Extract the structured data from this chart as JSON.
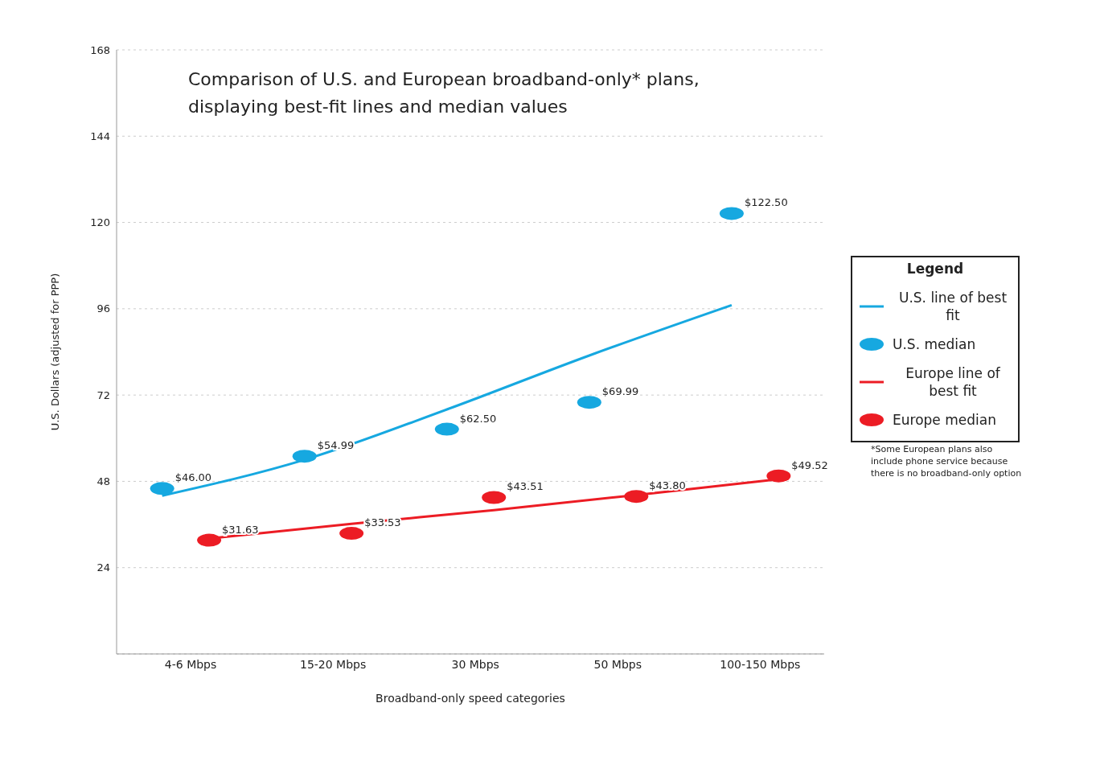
{
  "chart_data": {
    "type": "scatter",
    "title": "Comparison of U.S. and European broadband-only* plans, displaying best-fit lines and median values",
    "xlabel": "Broadband-only speed categories",
    "ylabel": "U.S. Dollars (adjusted for PPP)",
    "legend_title": "Legend",
    "categories": [
      "4-6 Mbps",
      "15-20 Mbps",
      "30 Mbps",
      "50 Mbps",
      "100-150 Mbps"
    ],
    "series": [
      {
        "name": "U.S. line of best fit",
        "type": "line",
        "color": "#16a8e0",
        "x": [
          "4-6 Mbps",
          "15-20 Mbps",
          "30 Mbps",
          "50 Mbps",
          "100-150 Mbps"
        ],
        "values": [
          44,
          54,
          68,
          83,
          97
        ],
        "marker": "none"
      },
      {
        "name": "U.S. median",
        "color": "#16a8e0",
        "marker": "circle",
        "x": [
          "4-6 Mbps",
          "15-20 Mbps",
          "30 Mbps",
          "50 Mbps",
          "100-150 Mbps"
        ],
        "values": [
          46.0,
          54.99,
          62.5,
          69.99,
          122.5
        ],
        "value_labels": [
          "$46.00",
          "$54.99",
          "$62.50",
          "$69.99",
          "$122.50"
        ]
      },
      {
        "name": "Europe line of best fit",
        "type": "line",
        "color": "#ec1c24",
        "x": [
          "4-6 Mbps",
          "15-20 Mbps",
          "30 Mbps",
          "50 Mbps",
          "100-150 Mbps"
        ],
        "values": [
          32.1,
          36.2,
          40,
          44.2,
          48.6
        ],
        "marker": "none"
      },
      {
        "name": "Europe median",
        "color": "#ec1c24",
        "marker": "circle",
        "x": [
          "4-6 Mbps",
          "15-20 Mbps",
          "30 Mbps",
          "50 Mbps",
          "100-150 Mbps"
        ],
        "values": [
          31.63,
          33.53,
          43.51,
          43.8,
          49.52
        ],
        "value_labels": [
          "$31.63",
          "$33.53",
          "$43.51",
          "$43.80",
          "$49.52"
        ]
      }
    ],
    "ylim": [
      0,
      168
    ],
    "yticks": [
      24,
      48,
      72,
      96,
      120,
      144,
      168
    ],
    "grid": "y",
    "legend": "right",
    "line_style": "solid",
    "annotations": [
      "*Some European plans also include phone service because there is no broadband-only option"
    ]
  }
}
